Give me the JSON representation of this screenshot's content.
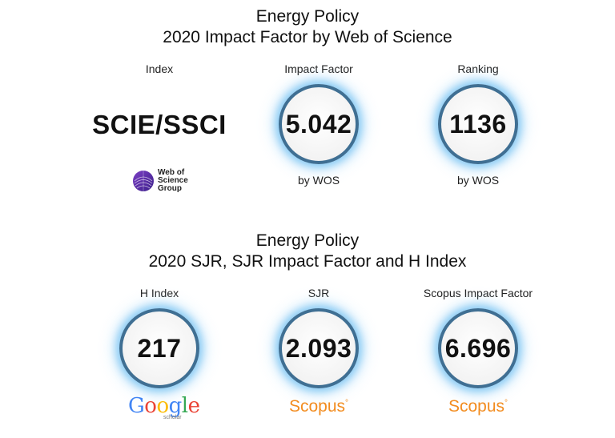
{
  "section1": {
    "title_line1": "Energy Policy",
    "title_line2": "2020 Impact Factor by Web of Science",
    "index": {
      "label": "Index",
      "value": "SCIE/SSCI"
    },
    "impact_factor": {
      "label": "Impact Factor",
      "value": "5.042",
      "source": "by WOS"
    },
    "ranking": {
      "label": "Ranking",
      "value": "1136",
      "source": "by WOS"
    },
    "wos_logo": {
      "line1": "Web of",
      "line2": "Science",
      "line3": "Group"
    }
  },
  "section2": {
    "title_line1": "Energy Policy",
    "title_line2": "2020 SJR, SJR Impact Factor and H Index",
    "h_index": {
      "label": "H Index",
      "value": "217"
    },
    "sjr": {
      "label": "SJR",
      "value": "2.093"
    },
    "scopus_if": {
      "label": "Scopus Impact Factor",
      "value": "6.696"
    }
  },
  "logos": {
    "google": {
      "letters": [
        "G",
        "o",
        "o",
        "g",
        "l",
        "e"
      ],
      "sub": "scholar"
    },
    "scopus": {
      "text": "Scopus",
      "mark": "°"
    }
  },
  "colors": {
    "ring": "#3f6f93",
    "glow": "#6ebef0",
    "scopus_orange": "#f28c1f",
    "wos_purple": "#5b2ca0",
    "google_blue": "#4285f4",
    "google_red": "#ea4335",
    "google_yellow": "#fbbc05",
    "google_green": "#34a853"
  }
}
